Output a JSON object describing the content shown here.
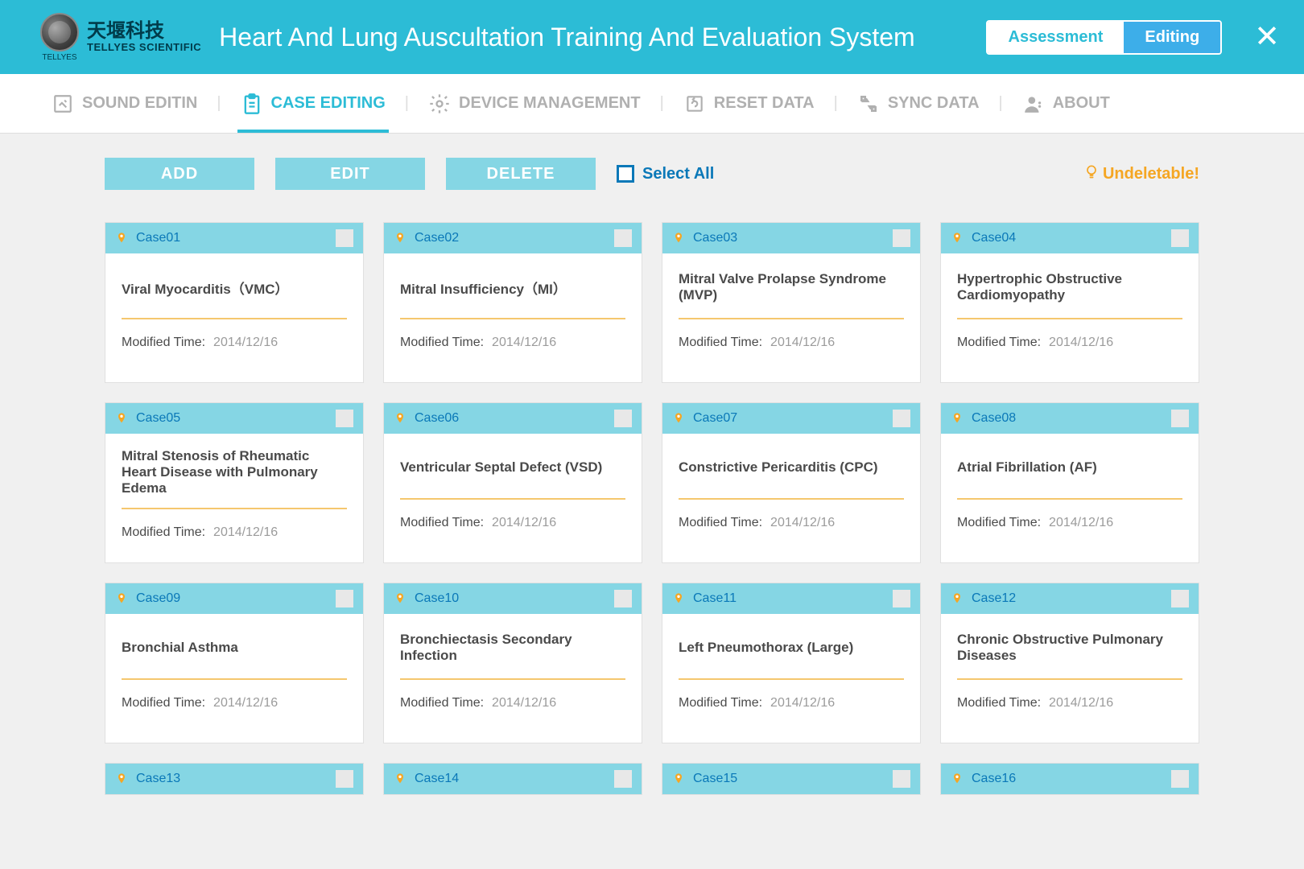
{
  "header": {
    "logo_cn": "天堰科技",
    "logo_en": "TELLYES SCIENTIFIC",
    "logo_sub": "TELLYES",
    "title": "Heart And Lung Auscultation Training And Evaluation System",
    "mode_assessment": "Assessment",
    "mode_editing": "Editing"
  },
  "nav": {
    "sound": "SOUND EDITIN",
    "case": "CASE EDITING",
    "device": "DEVICE MANAGEMENT",
    "reset": "RESET DATA",
    "sync": "SYNC DATA",
    "about": "ABOUT"
  },
  "actions": {
    "add": "ADD",
    "edit": "EDIT",
    "delete": "DELETE",
    "select_all": "Select All",
    "undeletable": "Undeletable!"
  },
  "meta_label": "Modified Time:",
  "cases": [
    {
      "id": "Case01",
      "title": "Viral Myocarditis（VMC）",
      "date": "2014/12/16"
    },
    {
      "id": "Case02",
      "title": "Mitral Insufficiency（MI）",
      "date": "2014/12/16"
    },
    {
      "id": "Case03",
      "title": "Mitral Valve Prolapse Syndrome (MVP)",
      "date": "2014/12/16"
    },
    {
      "id": "Case04",
      "title": "Hypertrophic Obstructive Cardiomyopathy",
      "date": "2014/12/16"
    },
    {
      "id": "Case05",
      "title": "Mitral Stenosis of Rheumatic Heart Disease with Pulmonary Edema",
      "date": "2014/12/16"
    },
    {
      "id": "Case06",
      "title": "Ventricular Septal Defect (VSD)",
      "date": "2014/12/16"
    },
    {
      "id": "Case07",
      "title": "Constrictive Pericarditis (CPC)",
      "date": "2014/12/16"
    },
    {
      "id": "Case08",
      "title": "Atrial Fibrillation (AF)",
      "date": "2014/12/16"
    },
    {
      "id": "Case09",
      "title": "Bronchial Asthma",
      "date": "2014/12/16"
    },
    {
      "id": "Case10",
      "title": "Bronchiectasis Secondary Infection",
      "date": "2014/12/16"
    },
    {
      "id": "Case11",
      "title": "Left Pneumothorax (Large)",
      "date": "2014/12/16"
    },
    {
      "id": "Case12",
      "title": "Chronic Obstructive Pulmonary Diseases",
      "date": "2014/12/16"
    },
    {
      "id": "Case13",
      "title": "",
      "date": "",
      "partial": true
    },
    {
      "id": "Case14",
      "title": "",
      "date": "",
      "partial": true
    },
    {
      "id": "Case15",
      "title": "",
      "date": "",
      "partial": true
    },
    {
      "id": "Case16",
      "title": "",
      "date": "",
      "partial": true
    }
  ],
  "colors": {
    "primary": "#2cbcd6",
    "accent": "#85d6e4",
    "link": "#0a78b8",
    "warn": "#f5a623",
    "divider": "#f5c76e"
  }
}
